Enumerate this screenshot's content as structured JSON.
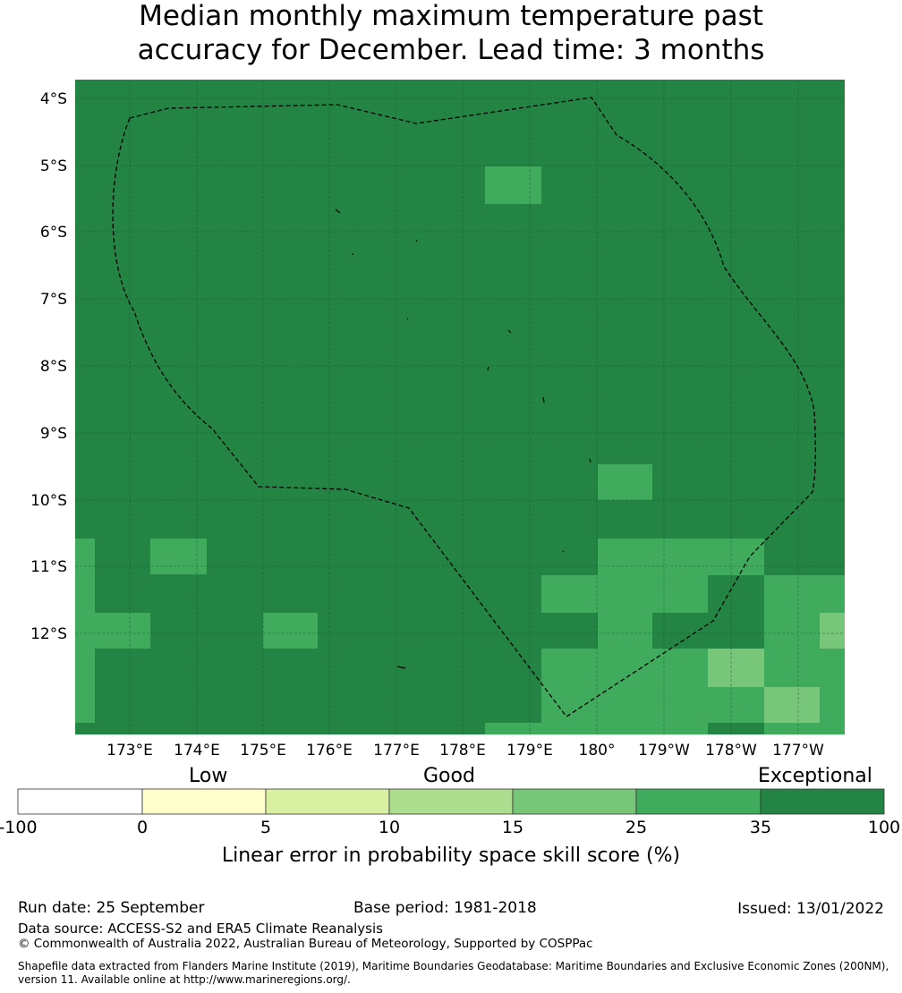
{
  "title_line1": "Median monthly maximum temperature past",
  "title_line2": "accuracy for December. Lead time: 3 months",
  "map": {
    "lat_labels": [
      "4°S",
      "5°S",
      "6°S",
      "7°S",
      "8°S",
      "9°S",
      "10°S",
      "11°S",
      "12°S"
    ],
    "lon_labels": [
      "173°E",
      "174°E",
      "175°E",
      "176°E",
      "177°E",
      "178°E",
      "179°E",
      "180°",
      "179°W",
      "178°W",
      "177°W"
    ],
    "base_color": "#238443",
    "colors": {
      "c25_35": "#41ab5d",
      "c15_25": "#78c679",
      "c35_100": "#238443"
    }
  },
  "colorbar": {
    "category_low": "Low",
    "category_good": "Good",
    "category_exceptional": "Exceptional",
    "ticks": [
      "-100",
      "0",
      "5",
      "10",
      "15",
      "25",
      "35",
      "100"
    ],
    "segment_colors": [
      "#ffffff",
      "#ffffcc",
      "#d9f0a3",
      "#addd8e",
      "#78c679",
      "#41ab5d",
      "#238443"
    ],
    "title": "Linear error in probability space skill score (%)"
  },
  "footer": {
    "run_date": "Run date: 25 September",
    "base_period": "Base period: 1981-2018",
    "issued": "Issued: 13/01/2022",
    "data_source": "Data source: ACCESS-S2 and ERA5 Climate Reanalysis",
    "copyright": "© Commonwealth of Australia 2022, Australian Bureau of Meteorology, Supported by COSPPac",
    "shapefile": "Shapefile data extracted from Flanders Marine Institute (2019), Maritime Boundaries Geodatabase: Maritime Boundaries and Exclusive Economic Zones (200NM), version 11. Available online at http://www.marineregions.org/."
  }
}
